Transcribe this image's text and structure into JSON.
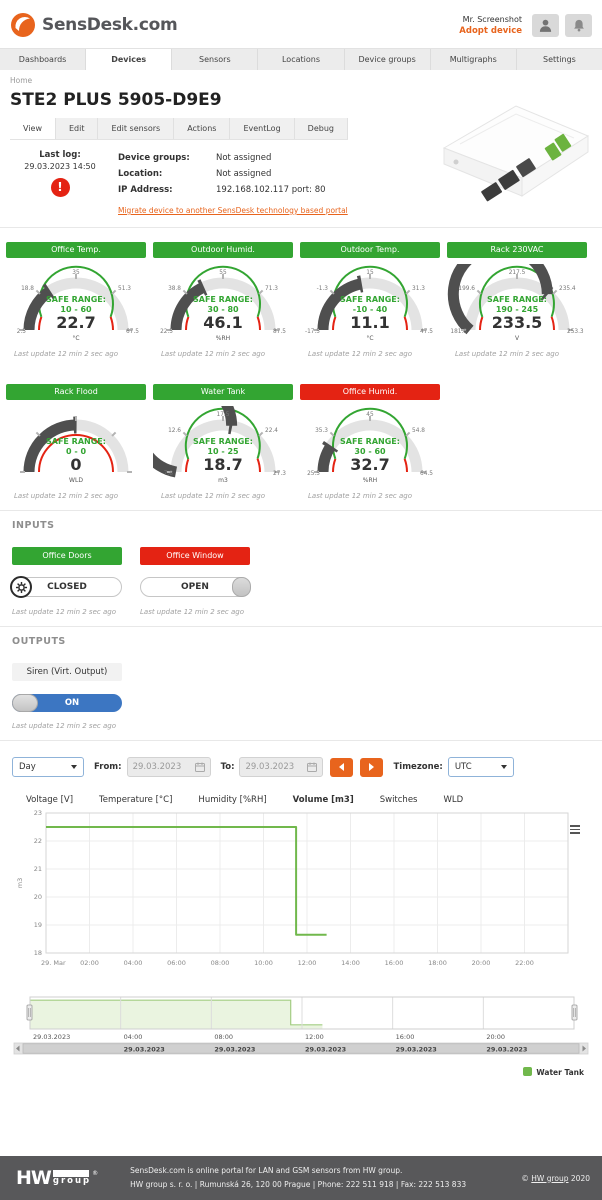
{
  "colors": {
    "green": "#33a532",
    "red": "#e42313",
    "orange": "#e8641d",
    "blue": "#3c76c2",
    "series_green": "#71b84c",
    "gauge_dark": "#4f4f4f",
    "gauge_bg": "#e3e3e3"
  },
  "header": {
    "logo_text": "SensDesk.com",
    "user_name": "Mr. Screenshot",
    "adopt_label": "Adopt device"
  },
  "nav": {
    "items": [
      {
        "label": "Dashboards",
        "active": false
      },
      {
        "label": "Devices",
        "active": true
      },
      {
        "label": "Sensors",
        "active": false
      },
      {
        "label": "Locations",
        "active": false
      },
      {
        "label": "Device groups",
        "active": false
      },
      {
        "label": "Multigraphs",
        "active": false
      },
      {
        "label": "Settings",
        "active": false
      }
    ]
  },
  "breadcrumb": {
    "home": "Home"
  },
  "page_title": "STE2 PLUS 5905-D9E9",
  "device_tabs": {
    "active": "View",
    "items": [
      "View",
      "Edit",
      "Edit sensors",
      "Actions",
      "EventLog",
      "Debug"
    ]
  },
  "device_info": {
    "last_log_label": "Last log:",
    "last_log_value": "29.03.2023 14:50",
    "alert_glyph": "!",
    "rows": [
      {
        "label": "Device groups:",
        "value": "Not assigned"
      },
      {
        "label": "Location:",
        "value": "Not assigned"
      },
      {
        "label": "IP Address:",
        "value": "192.168.102.117 port: 80"
      }
    ],
    "migrate_link": "Migrate device to another SensDesk technology based portal"
  },
  "gauges": [
    {
      "name": "Office Temp.",
      "header_color": "green",
      "min": 2.5,
      "max": 67.5,
      "safe_min": 10,
      "safe_max": 60,
      "ticks": [
        "2.5",
        "18.8",
        "35",
        "51.3",
        "67.5"
      ],
      "safe_label": "SAFE RANGE:",
      "safe_text": "10 - 60",
      "value": "22.7",
      "value_num": 22.7,
      "unit": "°C",
      "last_update": "Last update 12 min 2 sec ago"
    },
    {
      "name": "Outdoor Humid.",
      "header_color": "green",
      "min": 22.5,
      "max": 87.5,
      "safe_min": 30,
      "safe_max": 80,
      "ticks": [
        "22.5",
        "38.8",
        "55",
        "71.3",
        "87.5"
      ],
      "safe_label": "SAFE RANGE:",
      "safe_text": "30 - 80",
      "value": "46.1",
      "value_num": 46.1,
      "unit": "%RH",
      "last_update": "Last update 12 min 2 sec ago"
    },
    {
      "name": "Outdoor Temp.",
      "header_color": "green",
      "min": -17.5,
      "max": 47.5,
      "safe_min": -10,
      "safe_max": 40,
      "ticks": [
        "-17.5",
        "-1.3",
        "15",
        "31.3",
        "47.5"
      ],
      "safe_label": "SAFE RANGE:",
      "safe_text": "-10 - 40",
      "value": "11.1",
      "value_num": 11.1,
      "unit": "°C",
      "last_update": "Last update 12 min 2 sec ago"
    },
    {
      "name": "Rack 230VAC",
      "header_color": "green",
      "min": 181.8,
      "max": 253.3,
      "safe_min": 190,
      "safe_max": 245,
      "ticks": [
        "181.8",
        "199.6",
        "217.5",
        "235.4",
        "253.3"
      ],
      "safe_label": "SAFE RANGE:",
      "safe_text": "190 - 245",
      "value": "233.5",
      "value_num": 233.5,
      "unit": "V",
      "last_update": "Last update 12 min 2 sec ago"
    },
    {
      "name": "Rack Flood",
      "header_color": "green",
      "min": 0,
      "max": 0,
      "safe_min": 0,
      "safe_max": 0,
      "ticks": [
        "",
        "",
        "",
        "",
        ""
      ],
      "safe_label": "SAFE RANGE:",
      "safe_text": "0 - 0",
      "value": "0",
      "value_num": 0,
      "unit": "WLD",
      "last_update": "Last update 12 min 2 sec ago"
    },
    {
      "name": "Water Tank",
      "header_color": "green",
      "min": 7.8,
      "max": 27.3,
      "safe_min": 10,
      "safe_max": 25,
      "ticks": [
        "7.8",
        "12.6",
        "17.5",
        "22.4",
        "27.3"
      ],
      "safe_label": "SAFE RANGE:",
      "safe_text": "10 - 25",
      "value": "18.7",
      "value_num": 18.7,
      "unit": "m3",
      "last_update": "Last update 12 min 2 sec ago"
    },
    {
      "name": "Office Humid.",
      "header_color": "red",
      "min": 25.5,
      "max": 64.5,
      "safe_min": 30,
      "safe_max": 60,
      "ticks": [
        "25.5",
        "35.3",
        "45",
        "54.8",
        "64.5"
      ],
      "safe_label": "SAFE RANGE:",
      "safe_text": "30 - 60",
      "value": "32.7",
      "value_num": 32.7,
      "unit": "%RH",
      "last_update": "Last update 12 min 2 sec ago"
    }
  ],
  "inputs": {
    "section_label": "INPUTS",
    "items": [
      {
        "name": "Office Doors",
        "status_color": "green",
        "state": "CLOSED",
        "style": "gear-left",
        "last_update": "Last update 12 min 2 sec ago"
      },
      {
        "name": "Office Window",
        "status_color": "red",
        "state": "OPEN",
        "style": "handle-right",
        "last_update": "Last update 12 min 2 sec ago"
      }
    ]
  },
  "outputs": {
    "section_label": "OUTPUTS",
    "items": [
      {
        "name": "Siren (Virt. Output)",
        "state": "ON",
        "last_update": "Last update 12 min 2 sec ago"
      }
    ]
  },
  "controls": {
    "period_value": "Day",
    "from_label": "From:",
    "from_value": "29.03.2023",
    "to_label": "To:",
    "to_value": "29.03.2023",
    "timezone_label": "Timezone:",
    "timezone_value": "UTC"
  },
  "chart_data": {
    "type": "line",
    "tabs": [
      "Voltage [V]",
      "Temperature [°C]",
      "Humidity [%RH]",
      "Volume [m3]",
      "Switches",
      "WLD"
    ],
    "active_tab": "Volume [m3]",
    "ylabel": "m3",
    "ylim": [
      18,
      23
    ],
    "yticks": [
      18,
      19,
      20,
      21,
      22,
      23
    ],
    "xlim": [
      0,
      24
    ],
    "xticks": [
      {
        "pos": 0,
        "label": "29. Mar"
      },
      {
        "pos": 2,
        "label": "02:00"
      },
      {
        "pos": 4,
        "label": "04:00"
      },
      {
        "pos": 6,
        "label": "06:00"
      },
      {
        "pos": 8,
        "label": "08:00"
      },
      {
        "pos": 10,
        "label": "10:00"
      },
      {
        "pos": 12,
        "label": "12:00"
      },
      {
        "pos": 14,
        "label": "14:00"
      },
      {
        "pos": 16,
        "label": "16:00"
      },
      {
        "pos": 18,
        "label": "18:00"
      },
      {
        "pos": 20,
        "label": "20:00"
      },
      {
        "pos": 22,
        "label": "22:00"
      }
    ],
    "series": [
      {
        "name": "Water Tank",
        "unit": "m3",
        "points": [
          [
            0,
            22.5
          ],
          [
            11.5,
            22.5
          ],
          [
            11.5,
            18.65
          ],
          [
            12.9,
            18.65
          ]
        ]
      }
    ],
    "navigator_labels": [
      {
        "pos": 0,
        "top": "29.03.2023",
        "bottom": ""
      },
      {
        "pos": 4,
        "top": "04:00",
        "bottom": "29.03.2023"
      },
      {
        "pos": 8,
        "top": "08:00",
        "bottom": "29.03.2023"
      },
      {
        "pos": 12,
        "top": "12:00",
        "bottom": "29.03.2023"
      },
      {
        "pos": 16,
        "top": "16:00",
        "bottom": "29.03.2023"
      },
      {
        "pos": 20,
        "top": "20:00",
        "bottom": "29.03.2023"
      }
    ],
    "legend": [
      {
        "label": "Water Tank"
      }
    ],
    "grid": true,
    "legend_position": "bottom-right"
  },
  "footer": {
    "logo_hw": "HW",
    "logo_group": "group",
    "reg": "®",
    "line1": "SensDesk.com is online portal for LAN and GSM sensors from HW group.",
    "line2": "HW group s. r. o.  |  Rumunská 26, 120 00 Prague  |  Phone: 222 511 918  |  Fax: 222 513 833",
    "copyright_symbol": "©",
    "copyright_link": "HW group",
    "copyright_year": "2020"
  }
}
